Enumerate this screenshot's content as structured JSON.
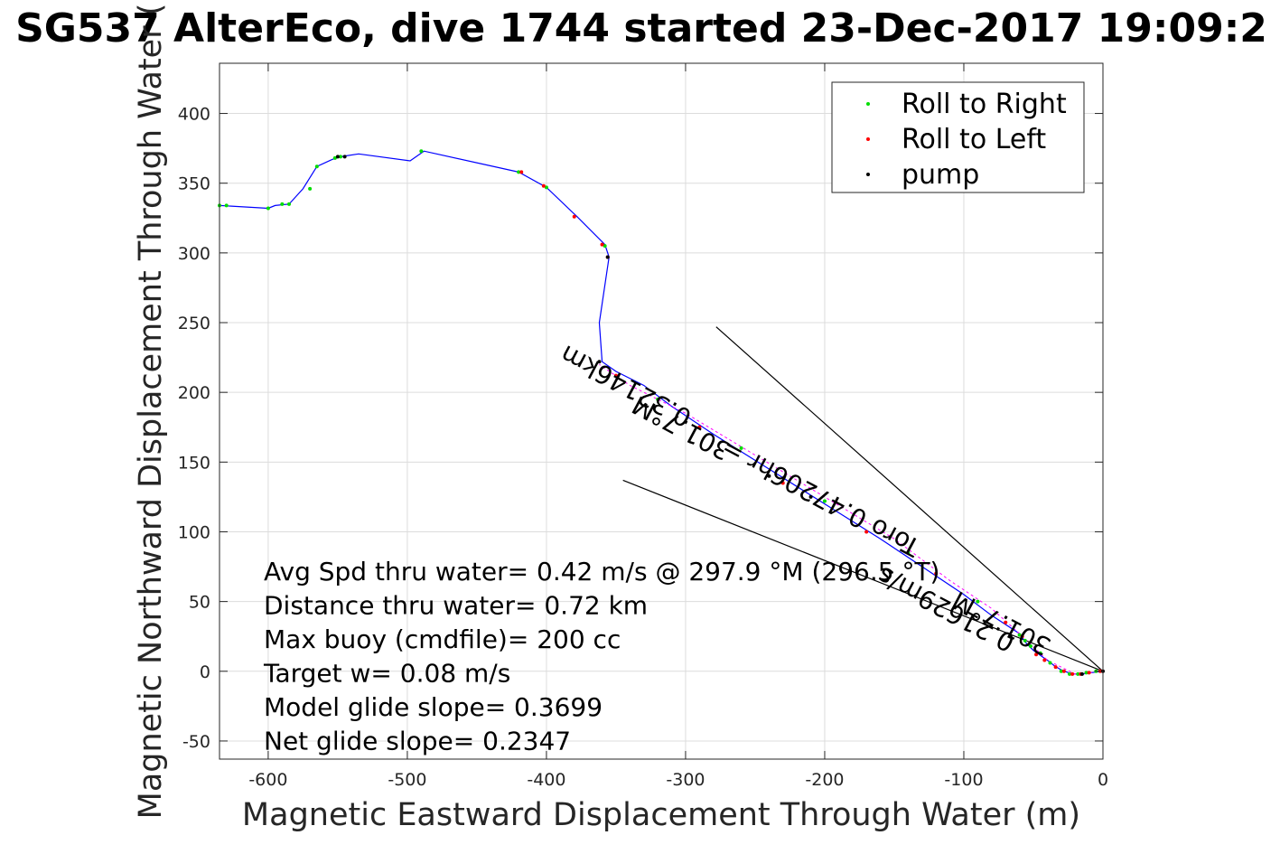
{
  "chart_data": {
    "type": "line",
    "title": "SG537 AlterEco, dive 1744 started 23-Dec-2017 19:09:2",
    "xlabel": "Magnetic Eastward Displacement Through Water (m)",
    "ylabel": "Magnetic Northward Displacement Through Water (",
    "xlim": [
      -635,
      0
    ],
    "ylim": [
      -63,
      436
    ],
    "xticks": [
      -600,
      -500,
      -400,
      -300,
      -200,
      -100,
      0
    ],
    "yticks": [
      -50,
      0,
      50,
      100,
      150,
      200,
      250,
      300,
      350,
      400
    ],
    "xticklabels": [
      "-600",
      "-500",
      "-400",
      "-300",
      "-200",
      "-100",
      "0"
    ],
    "yticklabels": [
      "-50",
      "0",
      "50",
      "100",
      "150",
      "200",
      "250",
      "300",
      "350",
      "400"
    ],
    "grid": true,
    "legend_position": "top-right",
    "legend": [
      "Roll to Right",
      "Roll to Left",
      "pump"
    ],
    "colors": {
      "track": "#0000ff",
      "roll_right": "#00dd00",
      "roll_left": "#ff0000",
      "pump": "#000000",
      "tangent": "#000000",
      "magenta": "#ff00ff"
    },
    "series": [
      {
        "role": "track",
        "x": [
          0,
          -8,
          -15,
          -20,
          -25,
          -30,
          -35,
          -40,
          -43,
          -50,
          -55,
          -60,
          -80,
          -100,
          -130,
          -160,
          -200,
          -240,
          -280,
          -310,
          -330,
          -350,
          -360,
          -362,
          -355,
          -358,
          -378,
          -400,
          -420,
          -488,
          -498,
          -535,
          -548,
          -554,
          -565,
          -575,
          -585,
          -595,
          -600,
          -635
        ],
        "y": [
          0,
          -1,
          -2,
          -2,
          -1,
          1,
          4,
          8,
          10,
          15,
          20,
          27,
          40,
          55,
          75,
          95,
          120,
          145,
          170,
          190,
          205,
          215,
          222,
          250,
          297,
          306,
          326,
          347,
          358,
          373,
          366,
          371,
          369,
          367,
          362,
          346,
          335,
          334,
          332,
          334
        ]
      },
      {
        "role": "magenta_track",
        "x": [
          0,
          -20,
          -40,
          -60,
          -80,
          -110,
          -150,
          -200,
          -250,
          -300,
          -340,
          -362
        ],
        "y": [
          0,
          -2,
          8,
          27,
          45,
          65,
          95,
          125,
          155,
          185,
          205,
          220
        ]
      },
      {
        "name": "Roll to Right",
        "x": [
          -5,
          -12,
          -18,
          -24,
          -30,
          -38,
          -45,
          -52,
          -56,
          -60,
          -90,
          -140,
          -200,
          -260,
          -320,
          -358,
          -400,
          -420,
          -490,
          -548,
          -552,
          -565,
          -570,
          -585,
          -590,
          -600,
          -630,
          -635
        ],
        "y": [
          0,
          -1,
          -2,
          -2,
          0,
          6,
          13,
          18,
          22,
          26,
          50,
          85,
          122,
          160,
          195,
          305,
          347,
          358,
          373,
          369,
          368,
          362,
          346,
          335,
          335,
          332,
          334,
          334
        ]
      },
      {
        "name": "Roll to Left",
        "x": [
          -2,
          -10,
          -16,
          -22,
          -28,
          -34,
          -42,
          -48,
          -58,
          -70,
          -120,
          -170,
          -230,
          -290,
          -350,
          -356,
          -360,
          -380,
          -402,
          -418
        ],
        "y": [
          0,
          -1,
          -2,
          -2,
          0,
          3,
          8,
          12,
          25,
          35,
          70,
          100,
          135,
          175,
          212,
          297,
          306,
          326,
          348,
          358
        ]
      },
      {
        "name": "pump",
        "x": [
          0,
          -15,
          -550,
          -545,
          -362,
          -356,
          -210,
          -240
        ],
        "y": [
          0,
          -2,
          369,
          369,
          222,
          297,
          125,
          140
        ]
      }
    ],
    "tangent_lines": [
      {
        "x": [
          0,
          -278
        ],
        "y": [
          0,
          247
        ]
      },
      {
        "x": [
          0,
          -345
        ],
        "y": [
          0,
          137
        ]
      }
    ],
    "annotations": [
      "Avg Spd thru water=  0.42 m/s @ 297.9 °M (296.5 °T)",
      "Distance thru water=  0.72 km",
      "Max buoy (cmdfile)= 200 cc",
      "Target w= 0.08 m/s",
      "Model glide slope= 0.3699",
      "Net glide slope= 0.2347"
    ],
    "rotated_labels": [
      {
        "text": "0.32146km",
        "x": -340,
        "y": 210,
        "angle": 208
      },
      {
        "text": "301.7°M",
        "x": -300,
        "y": 180,
        "angle": 208
      },
      {
        "text": "Toro 0.47206hr =",
        "x": -200,
        "y": 130,
        "angle": 208
      },
      {
        "text": "0.21629m/s",
        "x": -110,
        "y": 50,
        "angle": 208
      },
      {
        "text": "301.7°M",
        "x": -70,
        "y": 40,
        "angle": 208
      }
    ]
  }
}
